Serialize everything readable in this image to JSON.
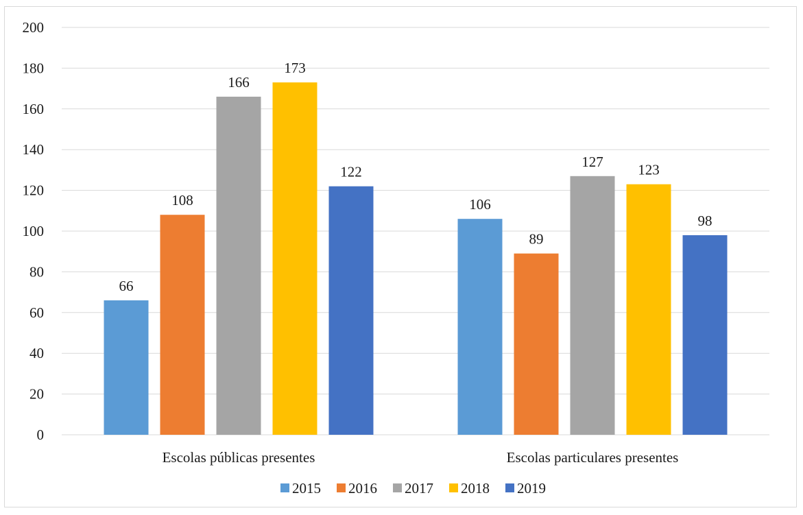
{
  "chart_data": {
    "type": "bar",
    "title": "",
    "xlabel": "",
    "ylabel": "",
    "ylim": [
      0,
      200
    ],
    "yticks": [
      0,
      20,
      40,
      60,
      80,
      100,
      120,
      140,
      160,
      180,
      200
    ],
    "categories": [
      "Escolas públicas presentes",
      "Escolas particulares presentes"
    ],
    "series": [
      {
        "name": "2015",
        "color": "#5b9bd5",
        "values": [
          66,
          106
        ]
      },
      {
        "name": "2016",
        "color": "#ed7d31",
        "values": [
          108,
          89
        ]
      },
      {
        "name": "2017",
        "color": "#a5a5a5",
        "values": [
          166,
          127
        ]
      },
      {
        "name": "2018",
        "color": "#ffc000",
        "values": [
          173,
          123
        ]
      },
      {
        "name": "2019",
        "color": "#4472c4",
        "values": [
          122,
          98
        ]
      }
    ],
    "grid": true,
    "legend": "bottom",
    "data_labels": true
  }
}
